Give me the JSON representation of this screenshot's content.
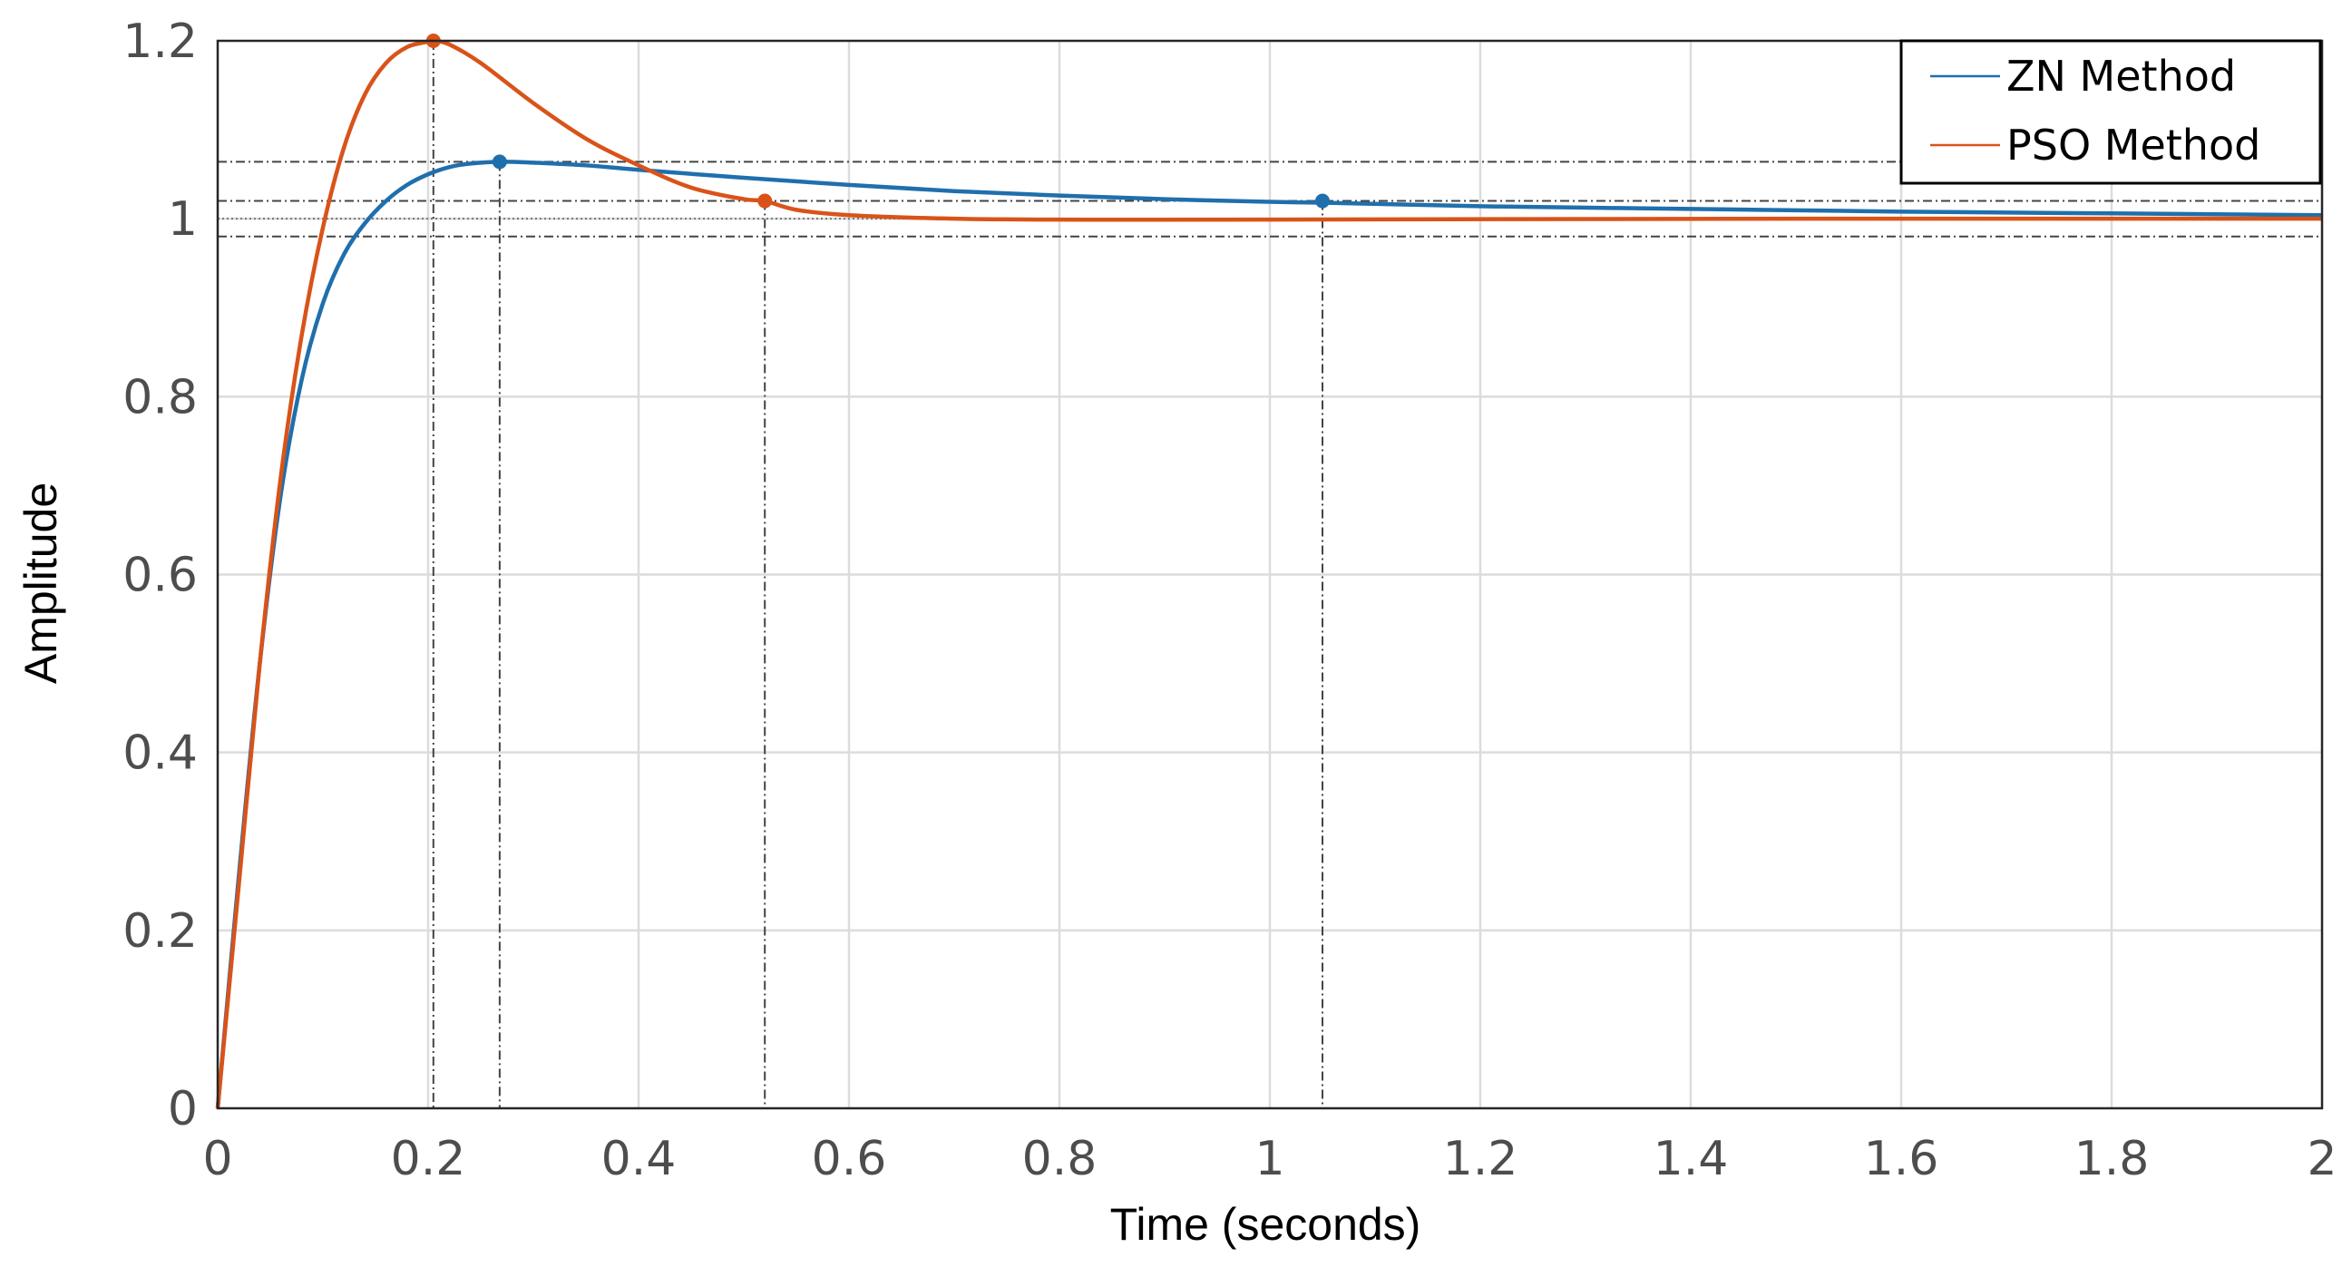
{
  "chart_data": {
    "type": "line",
    "title": "",
    "xlabel": "Time (seconds)",
    "ylabel": "Amplitude",
    "xlim": [
      0,
      2
    ],
    "ylim": [
      0,
      1.2
    ],
    "grid": true,
    "legend_position": "top-right",
    "x_ticks": [
      0,
      0.2,
      0.4,
      0.6,
      0.8,
      1,
      1.2,
      1.4,
      1.6,
      1.8,
      2
    ],
    "x_tick_labels": [
      "0",
      "0.2",
      "0.4",
      "0.6",
      "0.8",
      "1",
      "1.2",
      "1.4",
      "1.6",
      "1.8",
      "2"
    ],
    "y_ticks": [
      0,
      0.2,
      0.4,
      0.6,
      0.8,
      1,
      1.2
    ],
    "y_tick_labels": [
      "0",
      "0.2",
      "0.4",
      "0.6",
      "0.8",
      "1",
      "1.2"
    ],
    "series": [
      {
        "name": "ZN Method",
        "color": "#1f6fad",
        "x": [
          0,
          0.02,
          0.04,
          0.06,
          0.08,
          0.1,
          0.12,
          0.14,
          0.16,
          0.18,
          0.2,
          0.22,
          0.24,
          0.27,
          0.3,
          0.35,
          0.4,
          0.5,
          0.6,
          0.7,
          0.8,
          0.9,
          1.0,
          1.05,
          1.2,
          1.4,
          1.6,
          1.8,
          2.0
        ],
        "y": [
          0,
          0.26,
          0.5,
          0.69,
          0.82,
          0.905,
          0.96,
          0.995,
          1.02,
          1.038,
          1.05,
          1.058,
          1.062,
          1.064,
          1.063,
          1.06,
          1.055,
          1.046,
          1.038,
          1.031,
          1.026,
          1.022,
          1.019,
          1.018,
          1.014,
          1.011,
          1.008,
          1.006,
          1.004
        ],
        "markers": [
          {
            "x": 0.268,
            "y": 1.064,
            "label": "peak"
          },
          {
            "x": 1.05,
            "y": 1.02,
            "label": "settling"
          }
        ]
      },
      {
        "name": "PSO Method",
        "color": "#d95319",
        "x": [
          0,
          0.02,
          0.04,
          0.06,
          0.08,
          0.1,
          0.12,
          0.14,
          0.16,
          0.18,
          0.2,
          0.205,
          0.22,
          0.25,
          0.3,
          0.35,
          0.4,
          0.45,
          0.5,
          0.52,
          0.55,
          0.6,
          0.7,
          0.8,
          1.0,
          1.5,
          2.0
        ],
        "y": [
          0,
          0.25,
          0.5,
          0.71,
          0.87,
          0.99,
          1.08,
          1.14,
          1.175,
          1.193,
          1.199,
          1.2,
          1.196,
          1.175,
          1.13,
          1.09,
          1.06,
          1.035,
          1.022,
          1.02,
          1.01,
          1.004,
          1.0,
          0.999,
          0.999,
          1.0,
          1.0
        ],
        "markers": [
          {
            "x": 0.205,
            "y": 1.2,
            "label": "peak"
          },
          {
            "x": 0.52,
            "y": 1.02,
            "label": "settling"
          }
        ]
      }
    ],
    "reference_lines": {
      "horizontal": [
        1.2,
        1.064,
        1.02,
        1.0,
        0.98
      ],
      "vertical": [
        0.205,
        0.268,
        0.52,
        1.05
      ]
    }
  }
}
